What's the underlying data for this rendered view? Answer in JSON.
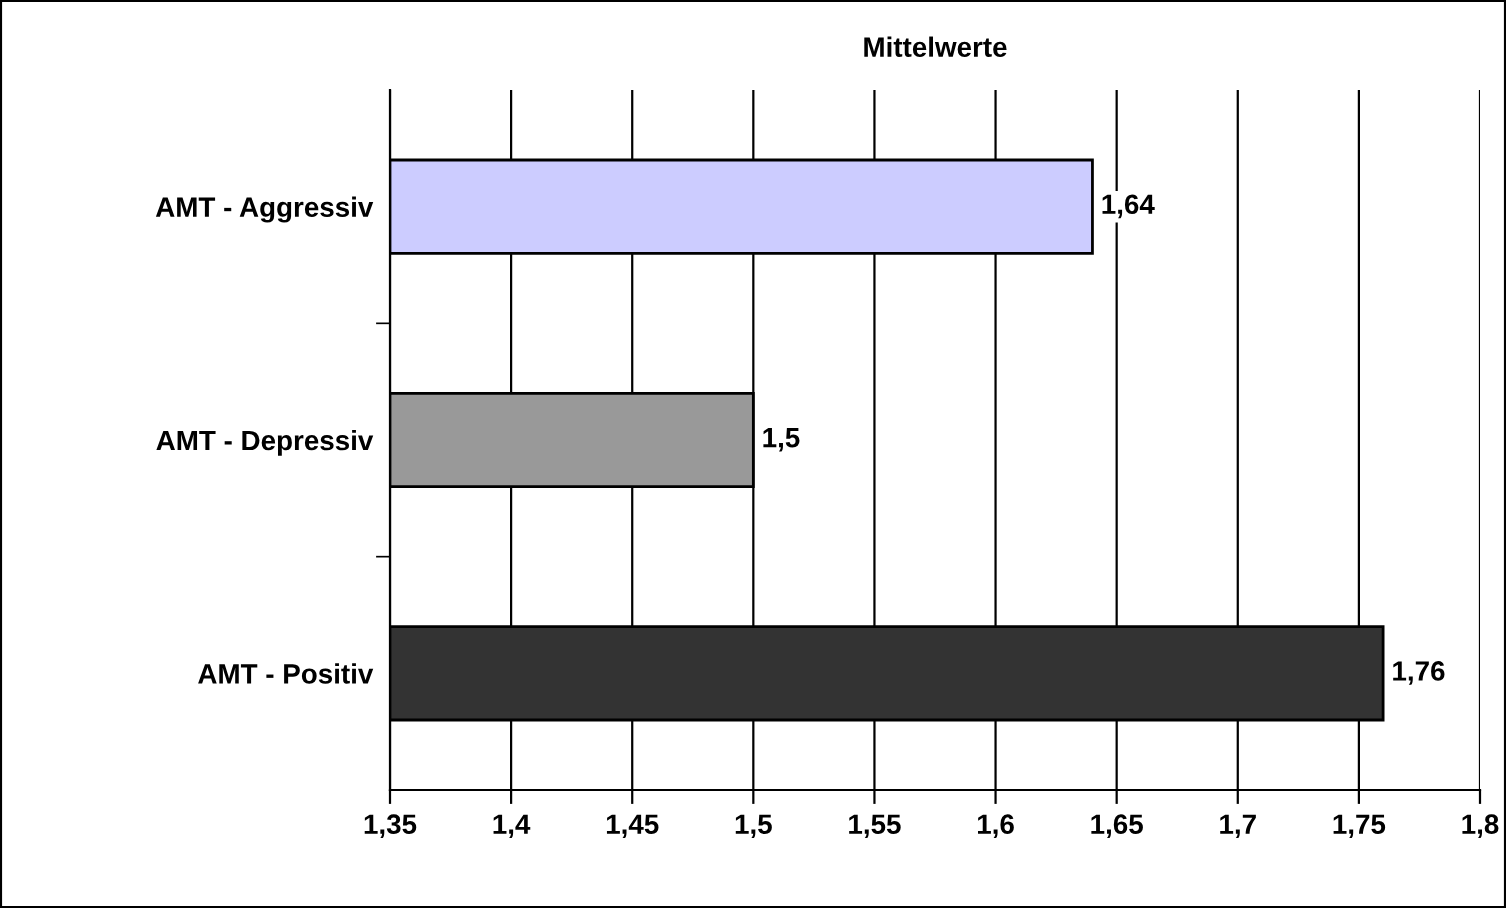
{
  "chart_data": {
    "type": "bar",
    "orientation": "horizontal",
    "title": "Mittelwerte",
    "categories": [
      "AMT - Aggressiv",
      "AMT - Depressiv",
      "AMT - Positiv"
    ],
    "values": [
      1.64,
      1.5,
      1.76
    ],
    "colors": [
      "#ccccff",
      "#999999",
      "#333333"
    ],
    "value_labels": [
      "1,64",
      "1,5",
      "1,76"
    ],
    "xlim": [
      1.35,
      1.8
    ],
    "xticks": [
      {
        "value": 1.35,
        "label": "1,35"
      },
      {
        "value": 1.4,
        "label": "1,4"
      },
      {
        "value": 1.45,
        "label": "1,45"
      },
      {
        "value": 1.5,
        "label": "1,5"
      },
      {
        "value": 1.55,
        "label": "1,55"
      },
      {
        "value": 1.6,
        "label": "1,6"
      },
      {
        "value": 1.65,
        "label": "1,65"
      },
      {
        "value": 1.7,
        "label": "1,7"
      },
      {
        "value": 1.75,
        "label": "1,75"
      },
      {
        "value": 1.8,
        "label": "1,8"
      }
    ],
    "grid": "x",
    "legend": false
  }
}
